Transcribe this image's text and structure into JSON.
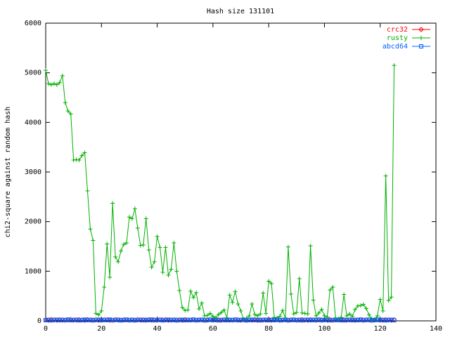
{
  "chart_data": {
    "type": "line",
    "title": "Hash size 131101",
    "y_label": "chi2-square against random hash",
    "xlim": [
      0,
      140
    ],
    "xticks": [
      0,
      20,
      40,
      60,
      80,
      100,
      120,
      140
    ],
    "ylim": [
      0,
      6000
    ],
    "yticks": [
      0,
      1000,
      2000,
      3000,
      4000,
      5000,
      6000
    ],
    "legend": "top-right",
    "x": [
      0,
      1,
      2,
      3,
      4,
      5,
      6,
      7,
      8,
      9,
      10,
      11,
      12,
      13,
      14,
      15,
      16,
      17,
      18,
      19,
      20,
      21,
      22,
      23,
      24,
      25,
      26,
      27,
      28,
      29,
      30,
      31,
      32,
      33,
      34,
      35,
      36,
      37,
      38,
      39,
      40,
      41,
      42,
      43,
      44,
      45,
      46,
      47,
      48,
      49,
      50,
      51,
      52,
      53,
      54,
      55,
      56,
      57,
      58,
      59,
      60,
      61,
      62,
      63,
      64,
      65,
      66,
      67,
      68,
      69,
      70,
      71,
      72,
      73,
      74,
      75,
      76,
      77,
      78,
      79,
      80,
      81,
      82,
      83,
      84,
      85,
      86,
      87,
      88,
      89,
      90,
      91,
      92,
      93,
      94,
      95,
      96,
      97,
      98,
      99,
      100,
      101,
      102,
      103,
      104,
      105,
      106,
      107,
      108,
      109,
      110,
      111,
      112,
      113,
      114,
      115,
      116,
      117,
      118,
      119,
      120,
      121,
      122,
      123,
      124,
      125
    ],
    "series": [
      {
        "name": "crc32",
        "color": "#ff0000",
        "marker": "diamond",
        "values": [
          18,
          12,
          25,
          20,
          14,
          22,
          16,
          11,
          19,
          24,
          13,
          17,
          21,
          15,
          10,
          23,
          18,
          14,
          20,
          12,
          16,
          22,
          19,
          13,
          11,
          24,
          17,
          15,
          21,
          18,
          12,
          20,
          14,
          23,
          16,
          19,
          11,
          22,
          15,
          17,
          13,
          21,
          18,
          24,
          12,
          16,
          20,
          14,
          19,
          11,
          23,
          17,
          15,
          22,
          13,
          18,
          21,
          12,
          16,
          24,
          14,
          20,
          19,
          11,
          17,
          23,
          15,
          13,
          22,
          18,
          12,
          21,
          16,
          20,
          14,
          24,
          11,
          19,
          17,
          15,
          22,
          13,
          18,
          23,
          12,
          16,
          21,
          14,
          20,
          19,
          11,
          17,
          24,
          15,
          13,
          22,
          18,
          12,
          20,
          16,
          21,
          14,
          23,
          11,
          19,
          17,
          15,
          22,
          13,
          18,
          24,
          12,
          16,
          20,
          14,
          21,
          19,
          11,
          17,
          23,
          15,
          13,
          22,
          18,
          12,
          20
        ],
        "draw_line": true
      },
      {
        "name": "rusty",
        "color": "#00b000",
        "marker": "plus",
        "values": [
          5050,
          4780,
          4760,
          4780,
          4760,
          4800,
          4940,
          4400,
          4230,
          4170,
          3240,
          3250,
          3240,
          3330,
          3390,
          2620,
          1850,
          1620,
          150,
          120,
          200,
          680,
          1550,
          880,
          2370,
          1290,
          1190,
          1410,
          1540,
          1570,
          2090,
          2060,
          2260,
          1870,
          1520,
          1530,
          2060,
          1430,
          1080,
          1190,
          1700,
          1480,
          980,
          1480,
          920,
          1040,
          1570,
          1000,
          610,
          270,
          210,
          220,
          600,
          470,
          570,
          240,
          360,
          100,
          110,
          150,
          90,
          60,
          130,
          170,
          220,
          60,
          520,
          370,
          590,
          340,
          200,
          30,
          50,
          100,
          340,
          130,
          100,
          140,
          560,
          150,
          800,
          750,
          70,
          60,
          90,
          210,
          50,
          1490,
          540,
          140,
          170,
          850,
          160,
          150,
          140,
          1510,
          420,
          100,
          160,
          230,
          100,
          80,
          620,
          680,
          50,
          40,
          70,
          530,
          100,
          140,
          90,
          230,
          300,
          310,
          330,
          250,
          120,
          40,
          30,
          100,
          430,
          200,
          2920,
          410,
          480,
          5150
        ]
      },
      {
        "name": "abcd64",
        "color": "#0060ff",
        "marker": "square",
        "values": [
          14,
          20,
          11,
          17,
          22,
          13,
          19,
          15,
          24,
          12,
          18,
          21,
          10,
          16,
          23,
          14,
          20,
          11,
          17,
          22,
          13,
          19,
          15,
          24,
          12,
          18,
          21,
          10,
          16,
          23,
          14,
          20,
          11,
          17,
          22,
          13,
          19,
          15,
          24,
          12,
          18,
          21,
          10,
          16,
          23,
          14,
          20,
          11,
          17,
          22,
          13,
          19,
          15,
          24,
          12,
          18,
          21,
          10,
          16,
          23,
          14,
          20,
          11,
          17,
          22,
          13,
          19,
          15,
          24,
          12,
          18,
          21,
          10,
          16,
          23,
          14,
          20,
          11,
          17,
          22,
          13,
          19,
          15,
          24,
          12,
          18,
          21,
          10,
          16,
          23,
          14,
          20,
          11,
          17,
          22,
          13,
          19,
          15,
          24,
          12,
          18,
          21,
          10,
          16,
          23,
          14,
          20,
          11,
          17,
          22,
          13,
          19,
          15,
          24,
          12,
          18,
          21,
          10,
          16,
          23,
          14,
          20,
          11,
          17,
          22,
          13
        ]
      }
    ]
  }
}
